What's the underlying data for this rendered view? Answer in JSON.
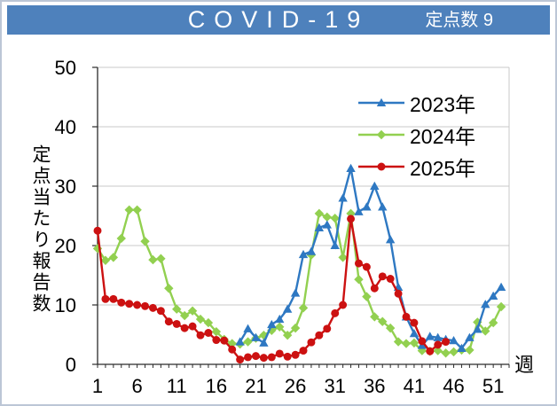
{
  "header": {
    "title": "COVID-19",
    "sentinel_count": "定点数 9",
    "bg_color": "#4E81BC",
    "text_color": "#FFFFFF"
  },
  "chart_data": {
    "type": "line",
    "title": "COVID-19",
    "xlabel": "週",
    "ylabel": "定点当たり報告数",
    "x_ticks": [
      1,
      6,
      11,
      16,
      21,
      26,
      31,
      36,
      41,
      46,
      51
    ],
    "y_ticks": [
      0,
      10,
      20,
      30,
      40,
      50
    ],
    "xlim": [
      1,
      53
    ],
    "ylim": [
      0,
      50
    ],
    "weeks_per_year": 52,
    "grid": true,
    "legend_position": "inside-top-right",
    "grid_color": "#C9C9C9",
    "axis_color": "#2B2B2B",
    "series": [
      {
        "name": "2023年",
        "color": "#2E78C2",
        "marker": "triangle",
        "z": 2,
        "start_week": 19,
        "values": [
          3.8,
          6.0,
          4.5,
          3.6,
          6.7,
          7.6,
          9.3,
          12.0,
          18.5,
          19.0,
          23.0,
          23.5,
          20.0,
          28.0,
          33.0,
          25.7,
          26.5,
          30.0,
          26.5,
          21.0,
          13.0,
          8.0,
          5.2,
          3.2,
          4.7,
          4.5,
          4.2,
          4.0,
          2.7,
          4.5,
          5.9,
          10.1,
          11.5,
          13.0
        ]
      },
      {
        "name": "2024年",
        "color": "#92D050",
        "marker": "diamond",
        "z": 1,
        "start_week": 1,
        "values": [
          19.5,
          17.5,
          18.0,
          21.2,
          26.0,
          26.0,
          20.7,
          17.6,
          17.8,
          12.8,
          9.3,
          8.2,
          9.0,
          7.6,
          7.0,
          5.5,
          4.2,
          3.5,
          3.4,
          3.8,
          4.4,
          4.9,
          5.7,
          6.3,
          4.9,
          6.1,
          9.5,
          18.4,
          25.4,
          24.8,
          24.6,
          18.0,
          25.4,
          14.3,
          11.4,
          8.0,
          7.2,
          6.1,
          3.8,
          3.5,
          3.6,
          2.3,
          2.2,
          2.3,
          1.9,
          2.1,
          2.4,
          2.4,
          7.1,
          5.6,
          7.0,
          9.7
        ]
      },
      {
        "name": "2025年",
        "color": "#CC1111",
        "marker": "circle",
        "z": 3,
        "start_week": 1,
        "values": [
          22.5,
          11.0,
          11.0,
          10.4,
          10.2,
          10.0,
          9.8,
          9.5,
          9.0,
          7.2,
          6.8,
          6.1,
          6.4,
          4.9,
          5.3,
          4.1,
          4.0,
          2.5,
          0.8,
          1.2,
          1.4,
          1.1,
          1.2,
          1.8,
          1.3,
          1.6,
          2.3,
          3.7,
          4.9,
          6.0,
          8.6,
          10.0,
          24.5,
          17.0,
          16.4,
          12.8,
          14.8,
          14.4,
          11.9,
          8.0,
          7.0,
          3.9,
          2.2,
          3.3,
          3.8
        ]
      }
    ]
  }
}
